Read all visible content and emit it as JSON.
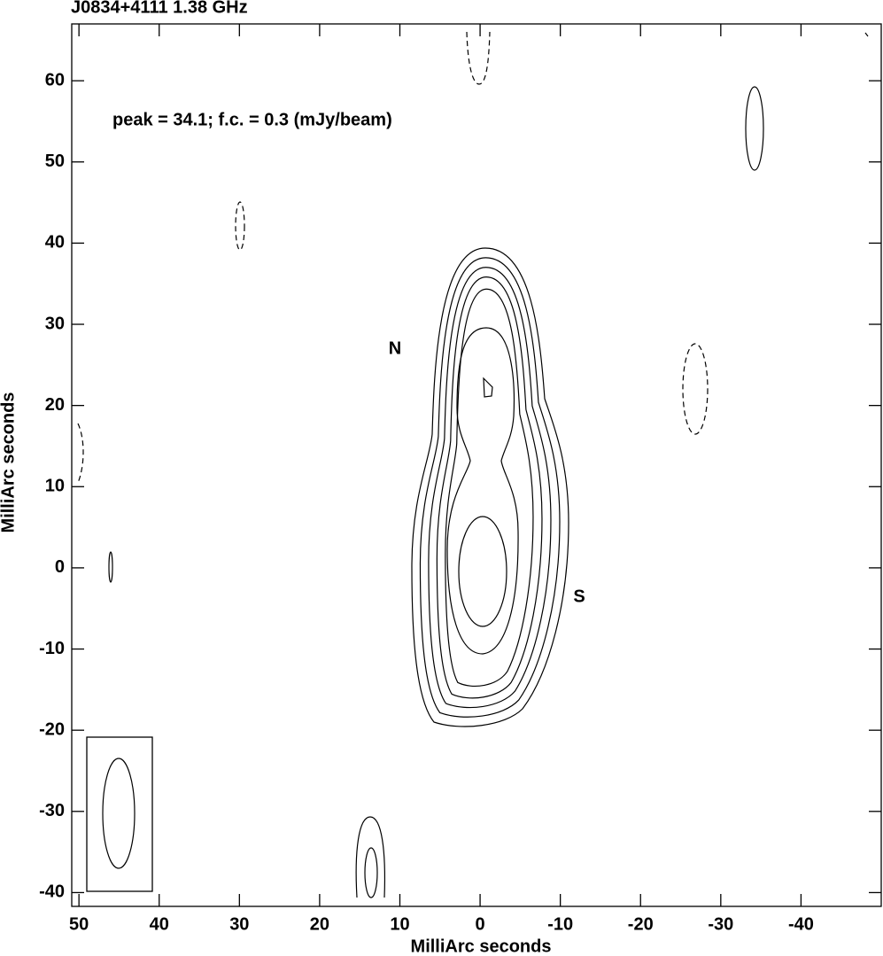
{
  "chart_data": {
    "type": "contour",
    "title": "J0834+4111  1.38 GHz",
    "annotation": "peak = 34.1;  f.c. = 0.3 (mJy/beam)",
    "component_labels": [
      "N",
      "S"
    ],
    "x_label": "MilliArc seconds",
    "y_label": "MilliArc seconds",
    "xlim": [
      50.9,
      -50
    ],
    "ylim": [
      -41.7,
      67
    ],
    "xticks": [
      50,
      40,
      30,
      20,
      10,
      0,
      -10,
      -20,
      -30,
      -40
    ],
    "yticks": [
      60,
      50,
      40,
      30,
      20,
      10,
      0,
      -10,
      -20,
      -30,
      -40
    ]
  }
}
